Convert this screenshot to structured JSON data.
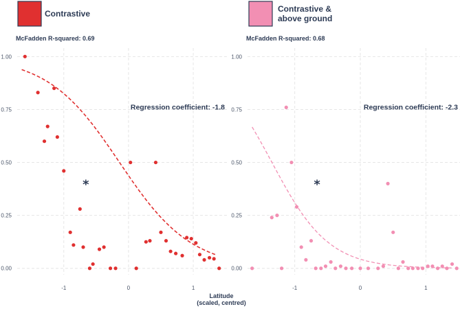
{
  "chart_data": {
    "type": "scatter",
    "xlabel": "Latitude\n(scaled, centred)",
    "ylabel": "",
    "x_ticks": [
      -1,
      0,
      1
    ],
    "y_ticks": [
      "0.00",
      "0.25",
      "0.50",
      "0.75",
      "1.00"
    ],
    "xlim": [
      -1.72,
      1.52
    ],
    "ylim": [
      -0.03,
      1.04
    ],
    "grid": true,
    "panels": [
      {
        "legend_label": "Contrastive",
        "color": "#e03030",
        "r_squared_label": "McFadden R-squared: 0.69",
        "coef_label": "Regression coefficient: -1.8",
        "significance": "*",
        "fit": {
          "intercept": -0.25,
          "slope": -1.8
        },
        "fit_range": [
          -1.65,
          1.35
        ],
        "points": [
          [
            -1.6,
            1.0
          ],
          [
            -1.4,
            0.83
          ],
          [
            -1.15,
            0.85
          ],
          [
            -1.25,
            0.67
          ],
          [
            -1.3,
            0.6
          ],
          [
            -1.1,
            0.62
          ],
          [
            -1.0,
            0.46
          ],
          [
            -0.75,
            0.28
          ],
          [
            -0.9,
            0.17
          ],
          [
            -0.85,
            0.11
          ],
          [
            -0.7,
            0.1
          ],
          [
            -0.6,
            0.0
          ],
          [
            -0.55,
            0.02
          ],
          [
            -0.45,
            0.09
          ],
          [
            -0.38,
            0.1
          ],
          [
            -0.28,
            0.0
          ],
          [
            -0.2,
            0.0
          ],
          [
            0.03,
            0.5
          ],
          [
            0.12,
            0.0
          ],
          [
            0.27,
            0.125
          ],
          [
            0.33,
            0.13
          ],
          [
            0.42,
            0.5
          ],
          [
            0.5,
            0.17
          ],
          [
            0.58,
            0.13
          ],
          [
            0.65,
            0.08
          ],
          [
            0.73,
            0.07
          ],
          [
            0.83,
            0.06
          ],
          [
            0.9,
            0.145
          ],
          [
            0.97,
            0.14
          ],
          [
            1.04,
            0.12
          ],
          [
            1.1,
            0.065
          ],
          [
            1.17,
            0.04
          ],
          [
            1.25,
            0.05
          ],
          [
            1.32,
            0.045
          ],
          [
            1.4,
            0.0
          ]
        ]
      },
      {
        "legend_label": "Contrastive & above ground",
        "legend_lines": [
          "Contrastive &",
          "above ground"
        ],
        "color": "#f28fb3",
        "r_squared_label": "McFadden R-squared: 0.68",
        "coef_label": "Regression coefficient: -2.3",
        "significance": "*",
        "fit": {
          "intercept": -3.1,
          "slope": -2.3
        },
        "fit_range": [
          -1.65,
          1.4
        ],
        "points": [
          [
            -1.65,
            0.0
          ],
          [
            -1.35,
            0.24
          ],
          [
            -1.27,
            0.25
          ],
          [
            -1.2,
            0.0
          ],
          [
            -1.13,
            0.76
          ],
          [
            -1.05,
            0.5
          ],
          [
            -0.97,
            0.29
          ],
          [
            -0.9,
            0.1
          ],
          [
            -0.83,
            0.04
          ],
          [
            -0.75,
            0.13
          ],
          [
            -0.68,
            0.0
          ],
          [
            -0.6,
            0.0
          ],
          [
            -0.53,
            0.01
          ],
          [
            -0.45,
            0.03
          ],
          [
            -0.38,
            0.0
          ],
          [
            -0.3,
            0.01
          ],
          [
            -0.22,
            0.0
          ],
          [
            -0.13,
            0.0
          ],
          [
            0.0,
            0.0
          ],
          [
            0.12,
            0.0
          ],
          [
            0.27,
            0.0
          ],
          [
            0.35,
            0.01
          ],
          [
            0.42,
            0.4
          ],
          [
            0.5,
            0.17
          ],
          [
            0.58,
            0.0
          ],
          [
            0.65,
            0.03
          ],
          [
            0.73,
            0.0
          ],
          [
            0.8,
            0.0
          ],
          [
            0.88,
            0.0
          ],
          [
            0.95,
            0.0
          ],
          [
            1.03,
            0.01
          ],
          [
            1.1,
            0.01
          ],
          [
            1.18,
            0.0
          ],
          [
            1.25,
            0.01
          ],
          [
            1.32,
            0.0
          ],
          [
            1.4,
            0.02
          ],
          [
            1.47,
            0.0
          ]
        ]
      }
    ]
  }
}
